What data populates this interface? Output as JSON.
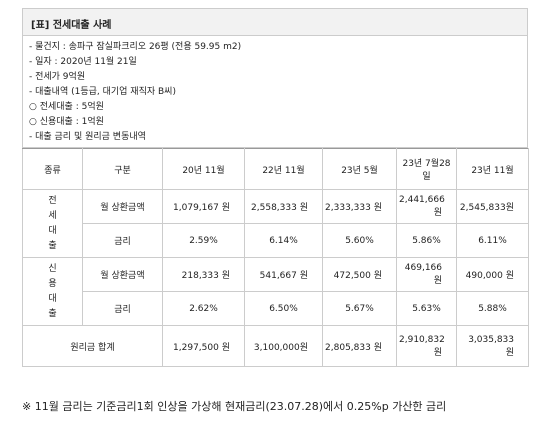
{
  "header": {
    "title": "[표] 전세대출 사례"
  },
  "notes": [
    "- 물건지 : 송파구 잠실파크리오 26평 (전용 59.95 m2)",
    "- 일자 : 2020년 11월 21일",
    "- 전세가 9억원",
    "- 대출내역 (1등급, 대기업 재직자 B씨)",
    "○ 전세대출 : 5억원",
    "○ 신용대출 : 1억원",
    "- 대출 금리 및 원리금 변동내역"
  ],
  "table": {
    "columns": [
      "종류",
      "구분",
      "20년 11월",
      "22년 11월",
      "23년 5월",
      "23년 7월28일",
      "23년 11월"
    ],
    "groups": [
      {
        "label": "전세 대출",
        "rows": [
          {
            "label": "월 상환금액",
            "values": [
              "1,079,167 원",
              "2,558,333 원",
              "2,333,333 원",
              "2,441,666원",
              "2,545,833원"
            ]
          },
          {
            "label": "금리",
            "values": [
              "2.59%",
              "6.14%",
              "5.60%",
              "5.86%",
              "6.11%"
            ]
          }
        ]
      },
      {
        "label": "신용 대출",
        "rows": [
          {
            "label": "월 상환금액",
            "values": [
              "218,333 원",
              "541,667 원",
              "472,500 원",
              "469,166원",
              "490,000 원"
            ]
          },
          {
            "label": "금리",
            "values": [
              "2.62%",
              "6.50%",
              "5.67%",
              "5.63%",
              "5.88%"
            ]
          }
        ]
      }
    ],
    "total": {
      "label": "원리금 합계",
      "values": [
        "1,297,500 원",
        "3,100,000원",
        "2,805,833 원",
        "2,910,832원",
        "3,035,833 원"
      ]
    }
  },
  "footnote": "※ 11월 금리는 기준금리1회 인상을 가상해 현재금리(23.07.28)에서 0.25%p 가산한 금리"
}
